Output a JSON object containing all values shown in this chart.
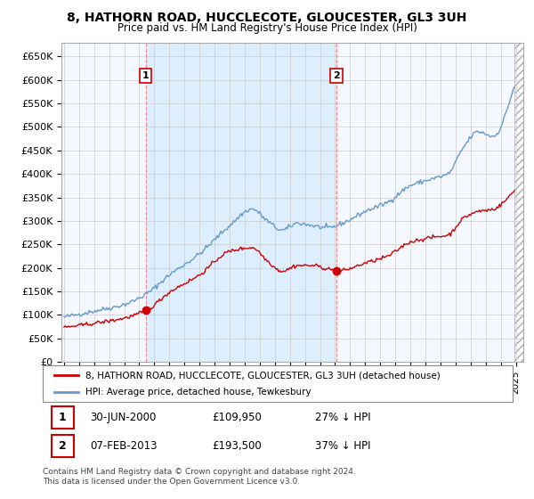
{
  "title": "8, HATHORN ROAD, HUCCLECOTE, GLOUCESTER, GL3 3UH",
  "subtitle": "Price paid vs. HM Land Registry's House Price Index (HPI)",
  "ylabel_ticks": [
    "£0",
    "£50K",
    "£100K",
    "£150K",
    "£200K",
    "£250K",
    "£300K",
    "£350K",
    "£400K",
    "£450K",
    "£500K",
    "£550K",
    "£600K",
    "£650K"
  ],
  "ytick_values": [
    0,
    50000,
    100000,
    150000,
    200000,
    250000,
    300000,
    350000,
    400000,
    450000,
    500000,
    550000,
    600000,
    650000
  ],
  "ylim": [
    0,
    680000
  ],
  "xlim_left": 1994.83,
  "xlim_right": 2025.5,
  "sale1_year": 2000,
  "sale1_month": 6,
  "sale1_price": 109950,
  "sale2_year": 2013,
  "sale2_month": 2,
  "sale2_price": 193500,
  "legend_property": "8, HATHORN ROAD, HUCCLECOTE, GLOUCESTER, GL3 3UH (detached house)",
  "legend_hpi": "HPI: Average price, detached house, Tewkesbury",
  "footnote": "Contains HM Land Registry data © Crown copyright and database right 2024.\nThis data is licensed under the Open Government Licence v3.0.",
  "property_color": "#cc0000",
  "hpi_color": "#6699cc",
  "shade_color": "#ddeeff",
  "background_color": "#ffffff",
  "grid_color": "#cccccc",
  "vline_color": "#ee8888",
  "hatch_color": "#aaaaaa",
  "title_fontsize": 10,
  "subtitle_fontsize": 8.5
}
